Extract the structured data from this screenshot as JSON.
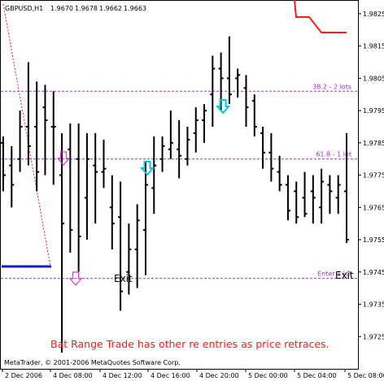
{
  "chart_data": {
    "type": "ohlc",
    "header": {
      "symbol_tf": "GBPUSD,H1",
      "open": "1.9670",
      "high": "1.9678",
      "low": "1.9662",
      "close": "1.9663"
    },
    "copyright": "MetaTrader, © 2001-2006 MetaQuotes Software Corp.",
    "caption": "Bat Range Trade has other re entries as price retraces.",
    "y_ticks": [
      "1.9825",
      "1.9815",
      "1.9805",
      "1.9795",
      "1.9785",
      "1.9775",
      "1.9765",
      "1.9755",
      "1.9745",
      "1.9735",
      "1.9725"
    ],
    "y_tick_values": [
      1.9825,
      1.9815,
      1.9805,
      1.9795,
      1.9785,
      1.9775,
      1.9765,
      1.9755,
      1.9745,
      1.9735,
      1.9725
    ],
    "ylim": [
      1.9715,
      1.9829
    ],
    "x_ticks": [
      "2 Dec 2006",
      "4 Dec 08:00",
      "4 Dec 12:00",
      "4 Dec 16:00",
      "4 Dec 20:00",
      "5 Dec 00:00",
      "5 Dec 04:00",
      "5 Dec 08:00"
    ],
    "levels": [
      {
        "label": "38.2 - 2 lots",
        "value": 1.9801
      },
      {
        "label": "61.8 - 1 lot",
        "value": 1.978
      },
      {
        "label": "Enter 1 lot",
        "value": 1.9743
      }
    ],
    "annotations": {
      "exit_left": "Exit",
      "exit_right": "Exit"
    },
    "bars": [
      {
        "o": 1.9785,
        "h": 1.9787,
        "l": 1.977,
        "c": 1.9775
      },
      {
        "o": 1.9778,
        "h": 1.9784,
        "l": 1.9765,
        "c": 1.9772
      },
      {
        "o": 1.978,
        "h": 1.9795,
        "l": 1.9776,
        "c": 1.979
      },
      {
        "o": 1.979,
        "h": 1.981,
        "l": 1.9778,
        "c": 1.9784
      },
      {
        "o": 1.979,
        "h": 1.9804,
        "l": 1.977,
        "c": 1.9776
      },
      {
        "o": 1.9796,
        "h": 1.9803,
        "l": 1.9775,
        "c": 1.9792
      },
      {
        "o": 1.979,
        "h": 1.9801,
        "l": 1.9772,
        "c": 1.979
      },
      {
        "o": 1.9775,
        "h": 1.9788,
        "l": 1.972,
        "c": 1.976
      },
      {
        "o": 1.9783,
        "h": 1.9791,
        "l": 1.9751,
        "c": 1.9758
      },
      {
        "o": 1.978,
        "h": 1.9791,
        "l": 1.9745,
        "c": 1.9756
      },
      {
        "o": 1.9768,
        "h": 1.9788,
        "l": 1.9755,
        "c": 1.978
      },
      {
        "o": 1.9778,
        "h": 1.9788,
        "l": 1.976,
        "c": 1.9776
      },
      {
        "o": 1.9776,
        "h": 1.9786,
        "l": 1.9771,
        "c": 1.9777
      },
      {
        "o": 1.9765,
        "h": 1.9775,
        "l": 1.9752,
        "c": 1.976
      },
      {
        "o": 1.9762,
        "h": 1.9773,
        "l": 1.9733,
        "c": 1.9739
      },
      {
        "o": 1.9745,
        "h": 1.976,
        "l": 1.9738,
        "c": 1.9752
      },
      {
        "o": 1.9752,
        "h": 1.9766,
        "l": 1.974,
        "c": 1.9761
      },
      {
        "o": 1.9758,
        "h": 1.9779,
        "l": 1.9744,
        "c": 1.9772
      },
      {
        "o": 1.9771,
        "h": 1.9787,
        "l": 1.9763,
        "c": 1.9778
      },
      {
        "o": 1.978,
        "h": 1.9787,
        "l": 1.9776,
        "c": 1.9784
      },
      {
        "o": 1.9783,
        "h": 1.9795,
        "l": 1.978,
        "c": 1.9785
      },
      {
        "o": 1.9783,
        "h": 1.9792,
        "l": 1.9774,
        "c": 1.9781
      },
      {
        "o": 1.978,
        "h": 1.979,
        "l": 1.9778,
        "c": 1.9786
      },
      {
        "o": 1.9788,
        "h": 1.9796,
        "l": 1.9782,
        "c": 1.9792
      },
      {
        "o": 1.9792,
        "h": 1.9797,
        "l": 1.9785,
        "c": 1.9795
      },
      {
        "o": 1.98,
        "h": 1.9812,
        "l": 1.979,
        "c": 1.9808
      },
      {
        "o": 1.9808,
        "h": 1.9813,
        "l": 1.9795,
        "c": 1.9805
      },
      {
        "o": 1.9805,
        "h": 1.9818,
        "l": 1.9797,
        "c": 1.98
      },
      {
        "o": 1.9805,
        "h": 1.9808,
        "l": 1.9799,
        "c": 1.9806
      },
      {
        "o": 1.9802,
        "h": 1.9806,
        "l": 1.979,
        "c": 1.9796
      },
      {
        "o": 1.9798,
        "h": 1.98,
        "l": 1.9787,
        "c": 1.979
      },
      {
        "o": 1.9788,
        "h": 1.979,
        "l": 1.9777,
        "c": 1.9782
      },
      {
        "o": 1.9782,
        "h": 1.9788,
        "l": 1.9773,
        "c": 1.9777
      },
      {
        "o": 1.9776,
        "h": 1.9781,
        "l": 1.977,
        "c": 1.9772
      },
      {
        "o": 1.9772,
        "h": 1.9775,
        "l": 1.9761,
        "c": 1.9764
      },
      {
        "o": 1.977,
        "h": 1.9773,
        "l": 1.976,
        "c": 1.9762
      },
      {
        "o": 1.9768,
        "h": 1.9776,
        "l": 1.9762,
        "c": 1.9763
      },
      {
        "o": 1.977,
        "h": 1.9775,
        "l": 1.976,
        "c": 1.9768
      },
      {
        "o": 1.9765,
        "h": 1.9777,
        "l": 1.976,
        "c": 1.9773
      },
      {
        "o": 1.9772,
        "h": 1.9775,
        "l": 1.9763,
        "c": 1.977
      },
      {
        "o": 1.9768,
        "h": 1.9775,
        "l": 1.9763,
        "c": 1.9772
      },
      {
        "o": 1.977,
        "h": 1.9788,
        "l": 1.9754,
        "c": 1.9755
      }
    ],
    "colors": {
      "bar": "#000000",
      "level_line": "#9b30d0",
      "red_line": "#ff1a1a",
      "blue_line": "#1a1acc",
      "arrow_magenta": "#e030e0",
      "arrow_cyan": "#00c8e0"
    }
  }
}
